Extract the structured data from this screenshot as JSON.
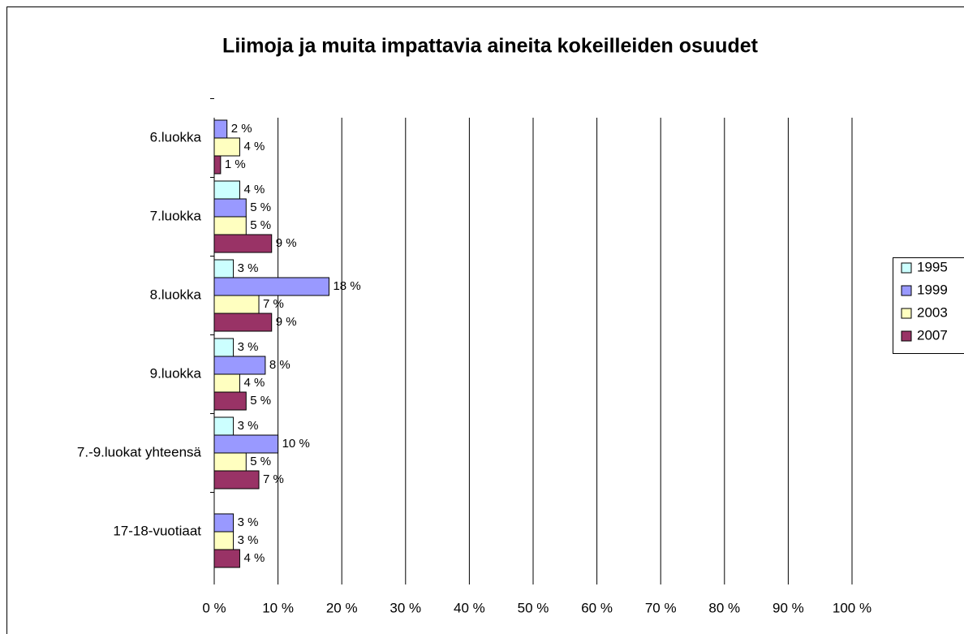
{
  "chart_data": {
    "type": "bar",
    "orientation": "horizontal",
    "title": "Liimoja ja muita impattavia aineita kokeilleiden osuudet",
    "categories": [
      "6.luokka",
      "7.luokka",
      "8.luokka",
      "9.luokka",
      "7.-9.luokat yhteensä",
      "17-18-vuotiaat"
    ],
    "series": [
      {
        "name": "1995",
        "color": "#ccffff",
        "values": [
          null,
          4,
          3,
          3,
          3,
          null
        ],
        "value_labels": [
          null,
          "4 %",
          "3 %",
          "3 %",
          "3 %",
          null
        ]
      },
      {
        "name": "1999",
        "color": "#9999ff",
        "values": [
          2,
          5,
          18,
          8,
          10,
          3
        ],
        "value_labels": [
          "2 %",
          "5 %",
          "18 %",
          "8 %",
          "10 %",
          "3 %"
        ]
      },
      {
        "name": "2003",
        "color": "#ffffc0",
        "values": [
          4,
          5,
          7,
          4,
          5,
          3
        ],
        "value_labels": [
          "4 %",
          "5 %",
          "7 %",
          "4 %",
          "5 %",
          "3 %"
        ]
      },
      {
        "name": "2007",
        "color": "#993366",
        "values": [
          1,
          9,
          9,
          5,
          7,
          4
        ],
        "value_labels": [
          "1 %",
          "9 %",
          "9 %",
          "5 %",
          "7 %",
          "4 %"
        ]
      }
    ],
    "xlim": [
      0,
      100
    ],
    "xticks": [
      {
        "value": 0,
        "label": "0 %"
      },
      {
        "value": 10,
        "label": "10 %"
      },
      {
        "value": 20,
        "label": "20 %"
      },
      {
        "value": 30,
        "label": "30 %"
      },
      {
        "value": 40,
        "label": "40 %"
      },
      {
        "value": 50,
        "label": "50 %"
      },
      {
        "value": 60,
        "label": "60 %"
      },
      {
        "value": 70,
        "label": "70 %"
      },
      {
        "value": 80,
        "label": "80 %"
      },
      {
        "value": 90,
        "label": "90 %"
      },
      {
        "value": 100,
        "label": "100 %"
      }
    ],
    "grid": true,
    "legend": "right"
  }
}
